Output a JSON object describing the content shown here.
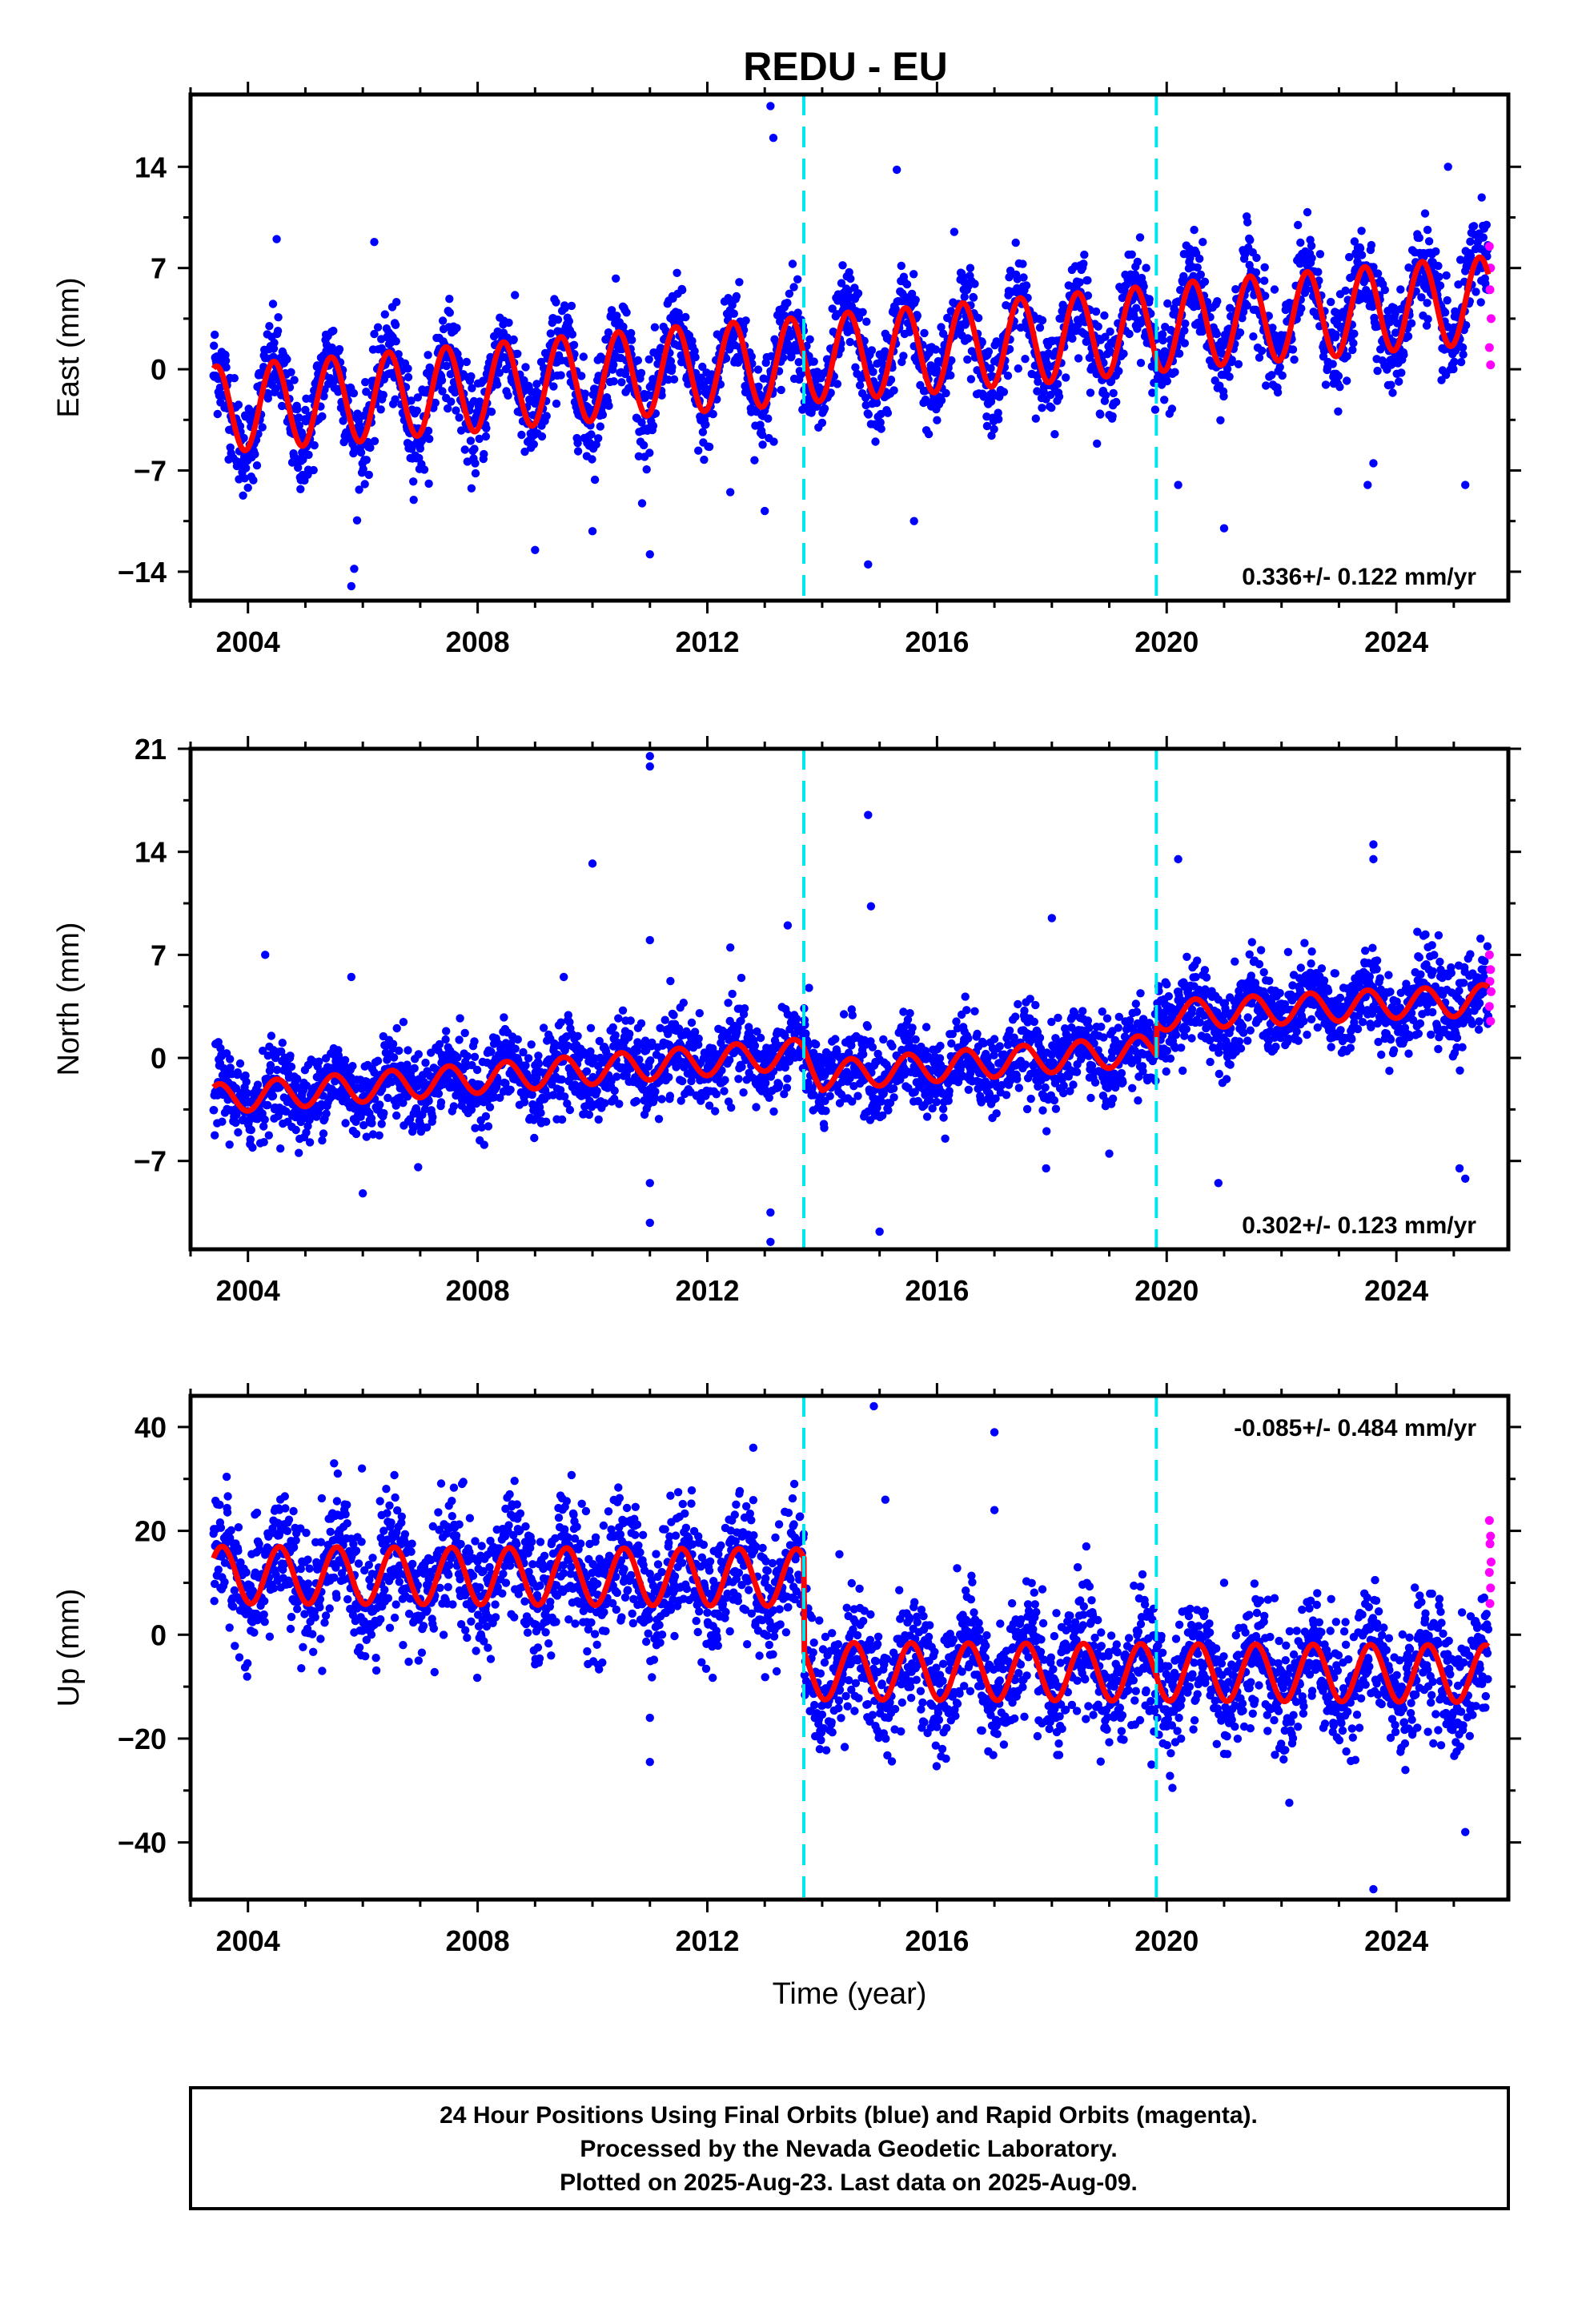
{
  "title": "REDU - EU",
  "colors": {
    "final": "#0000ff",
    "rapid": "#ff00ff",
    "model": "#ff0000",
    "event": "#00e5ee"
  },
  "chart_data": [
    {
      "type": "scatter",
      "panel": "east",
      "title": "",
      "xlabel": "",
      "ylabel": "East (mm)",
      "xlim": [
        2003.0,
        2025.95
      ],
      "ylim": [
        -16.0,
        19.0
      ],
      "xticks": [
        2004,
        2008,
        2012,
        2016,
        2020,
        2024
      ],
      "xticklabels": [
        "2004",
        "2008",
        "2012",
        "2016",
        "2020",
        "2024"
      ],
      "yticks": [
        14,
        7,
        0,
        -7,
        -14
      ],
      "yticklabels": [
        "14",
        "7",
        "0",
        "-7",
        "-14"
      ],
      "rate_label": "0.336+/- 0.122 mm/yr",
      "rate_position": "bottom-right",
      "event_lines": [
        2013.68,
        2019.82
      ],
      "data_start": 2003.4,
      "data_end": 2025.6,
      "model": {
        "x": [
          2003.4,
          2004.0,
          2005.0,
          2006.0,
          2007.0,
          2008.0,
          2009.0,
          2010.0,
          2011.0,
          2012.0,
          2013.0,
          2013.68,
          2014.0,
          2015.0,
          2016.0,
          2017.0,
          2018.0,
          2019.0,
          2019.82,
          2020.0,
          2021.0,
          2022.0,
          2023.0,
          2024.0,
          2025.0,
          2025.6
        ],
        "base": [
          -2.8,
          -2.6,
          -2.3,
          -2.0,
          -1.6,
          -1.3,
          -0.9,
          -0.6,
          -0.2,
          0.1,
          0.4,
          0.6,
          0.8,
          1.1,
          1.4,
          1.8,
          2.1,
          2.5,
          2.8,
          2.9,
          3.3,
          3.6,
          3.9,
          4.3,
          4.6,
          4.8
        ],
        "annual_amplitude": 3.0,
        "peak_phase": 0.45
      },
      "scatter_sigma": 1.6,
      "outliers": [
        {
          "x": 2005.8,
          "y": -15.0
        },
        {
          "x": 2005.85,
          "y": -13.8
        },
        {
          "x": 2013.1,
          "y": 18.2
        },
        {
          "x": 2013.15,
          "y": 16.0
        },
        {
          "x": 2015.3,
          "y": 13.8
        },
        {
          "x": 2004.5,
          "y": 9.0
        },
        {
          "x": 2011.0,
          "y": -12.8
        },
        {
          "x": 2009.0,
          "y": -12.5
        },
        {
          "x": 2010.0,
          "y": -11.2
        },
        {
          "x": 2014.8,
          "y": -13.5
        },
        {
          "x": 2015.6,
          "y": -10.5
        },
        {
          "x": 2021.0,
          "y": -11.0
        },
        {
          "x": 2024.9,
          "y": 14.0
        },
        {
          "x": 2023.5,
          "y": -8.0
        },
        {
          "x": 2023.6,
          "y": -6.5
        },
        {
          "x": 2020.2,
          "y": -8.0
        },
        {
          "x": 2025.2,
          "y": -8.0
        },
        {
          "x": 2016.3,
          "y": 9.5
        },
        {
          "x": 2006.2,
          "y": 8.8
        },
        {
          "x": 2013.0,
          "y": -9.8
        },
        {
          "x": 2012.4,
          "y": -8.5
        }
      ],
      "rapid": {
        "x": [
          2025.62,
          2025.64,
          2025.63,
          2025.65,
          2025.62,
          2025.64
        ],
        "y": [
          8.5,
          7.0,
          5.5,
          3.5,
          1.5,
          0.3
        ]
      }
    },
    {
      "type": "scatter",
      "panel": "north",
      "title": "",
      "xlabel": "",
      "ylabel": "North (mm)",
      "xlim": [
        2003.0,
        2025.95
      ],
      "ylim": [
        -13.0,
        21.0
      ],
      "xticks": [
        2004,
        2008,
        2012,
        2016,
        2020,
        2024
      ],
      "xticklabels": [
        "2004",
        "2008",
        "2012",
        "2016",
        "2020",
        "2024"
      ],
      "yticks": [
        21,
        14,
        7,
        0,
        -7
      ],
      "yticklabels": [
        "21",
        "14",
        "7",
        "0",
        "-7"
      ],
      "rate_label": "0.302+/- 0.123 mm/yr",
      "rate_position": "bottom-right",
      "event_lines": [
        2013.68,
        2019.82
      ],
      "data_start": 2003.4,
      "data_end": 2025.6,
      "model": {
        "x": [
          2003.4,
          2004.0,
          2005.0,
          2006.0,
          2007.0,
          2008.0,
          2009.0,
          2010.0,
          2011.0,
          2012.0,
          2013.0,
          2013.68,
          2014.0,
          2015.0,
          2016.0,
          2017.0,
          2018.0,
          2019.0,
          2019.82,
          2019.83,
          2020.0,
          2021.0,
          2022.0,
          2023.0,
          2024.0,
          2025.0,
          2025.6
        ],
        "base": [
          -2.8,
          -2.6,
          -2.3,
          -2.0,
          -1.7,
          -1.4,
          -1.1,
          -0.8,
          -0.5,
          -0.2,
          0.1,
          0.3,
          -1.2,
          -0.9,
          -0.6,
          -0.3,
          0.0,
          0.3,
          0.6,
          2.8,
          2.9,
          3.1,
          3.3,
          3.5,
          3.7,
          3.8,
          4.0
        ],
        "annual_amplitude": 1.0,
        "peak_phase": 0.5
      },
      "scatter_sigma": 1.4,
      "outliers": [
        {
          "x": 2011.0,
          "y": 20.5
        },
        {
          "x": 2011.0,
          "y": 19.8
        },
        {
          "x": 2010.0,
          "y": 13.2
        },
        {
          "x": 2014.8,
          "y": 16.5
        },
        {
          "x": 2014.85,
          "y": 10.3
        },
        {
          "x": 2011.0,
          "y": 8.0
        },
        {
          "x": 2013.4,
          "y": 9.0
        },
        {
          "x": 2012.4,
          "y": 7.5
        },
        {
          "x": 2011.0,
          "y": -8.5
        },
        {
          "x": 2011.0,
          "y": -11.2
        },
        {
          "x": 2013.1,
          "y": -10.5
        },
        {
          "x": 2013.1,
          "y": -12.5
        },
        {
          "x": 2015.0,
          "y": -11.8
        },
        {
          "x": 2020.2,
          "y": 13.5
        },
        {
          "x": 2023.6,
          "y": 14.5
        },
        {
          "x": 2023.6,
          "y": 13.5
        },
        {
          "x": 2020.9,
          "y": -8.5
        },
        {
          "x": 2021.0,
          "y": -10.8
        },
        {
          "x": 2004.3,
          "y": 7.0
        },
        {
          "x": 2005.8,
          "y": 5.5
        },
        {
          "x": 2018.0,
          "y": 9.5
        },
        {
          "x": 2025.1,
          "y": -7.5
        },
        {
          "x": 2025.2,
          "y": -8.2
        },
        {
          "x": 2006.0,
          "y": -9.2
        },
        {
          "x": 2009.5,
          "y": 5.5
        },
        {
          "x": 2017.9,
          "y": -7.5
        },
        {
          "x": 2019.0,
          "y": -6.5
        }
      ],
      "rapid": {
        "x": [
          2025.62,
          2025.64,
          2025.63,
          2025.65,
          2025.62,
          2025.64
        ],
        "y": [
          7.0,
          6.0,
          5.2,
          4.5,
          3.5,
          2.5
        ]
      }
    },
    {
      "type": "scatter",
      "panel": "up",
      "title": "",
      "xlabel": "Time (year)",
      "ylabel": "Up (mm)",
      "xlim": [
        2003.0,
        2025.95
      ],
      "ylim": [
        -51.0,
        46.0
      ],
      "xticks": [
        2004,
        2008,
        2012,
        2016,
        2020,
        2024
      ],
      "xticklabels": [
        "2004",
        "2008",
        "2012",
        "2016",
        "2020",
        "2024"
      ],
      "yticks": [
        40,
        20,
        0,
        -20,
        -40
      ],
      "yticklabels": [
        "40",
        "20",
        "0",
        "-20",
        "-40"
      ],
      "rate_label": "-0.085+/- 0.484 mm/yr",
      "rate_position": "top-right",
      "event_lines": [
        2013.68,
        2019.82
      ],
      "data_start": 2003.4,
      "data_end": 2025.6,
      "model": {
        "x": [
          2003.4,
          2013.68,
          2013.69,
          2025.6
        ],
        "base": [
          11.5,
          11.0,
          -7.0,
          -7.5
        ],
        "annual_amplitude": 5.5,
        "peak_phase": 0.55
      },
      "scatter_sigma": 6.0,
      "outliers": [
        {
          "x": 2014.9,
          "y": 44.0
        },
        {
          "x": 2017.0,
          "y": 39.0
        },
        {
          "x": 2005.5,
          "y": 33.0
        },
        {
          "x": 2012.8,
          "y": 36.0
        },
        {
          "x": 2011.0,
          "y": -24.5
        },
        {
          "x": 2011.0,
          "y": -16.0
        },
        {
          "x": 2023.6,
          "y": -49.0
        },
        {
          "x": 2025.2,
          "y": -38.0
        },
        {
          "x": 2020.1,
          "y": -29.5
        },
        {
          "x": 2015.1,
          "y": 26.0
        },
        {
          "x": 2017.0,
          "y": 24.0
        },
        {
          "x": 2014.3,
          "y": 15.5
        },
        {
          "x": 2018.6,
          "y": 17.0
        },
        {
          "x": 2021.0,
          "y": 10.0
        }
      ],
      "rapid": {
        "x": [
          2025.62,
          2025.64,
          2025.63,
          2025.65,
          2025.62,
          2025.64,
          2025.63
        ],
        "y": [
          22.0,
          19.0,
          17.5,
          14.0,
          12.0,
          9.0,
          6.0
        ]
      }
    }
  ],
  "caption": {
    "line1": "24 Hour Positions Using Final Orbits (blue) and Rapid Orbits (magenta).",
    "line2": "Processed by the Nevada Geodetic Laboratory.",
    "line3": "Plotted on 2025-Aug-23. Last data on 2025-Aug-09."
  }
}
